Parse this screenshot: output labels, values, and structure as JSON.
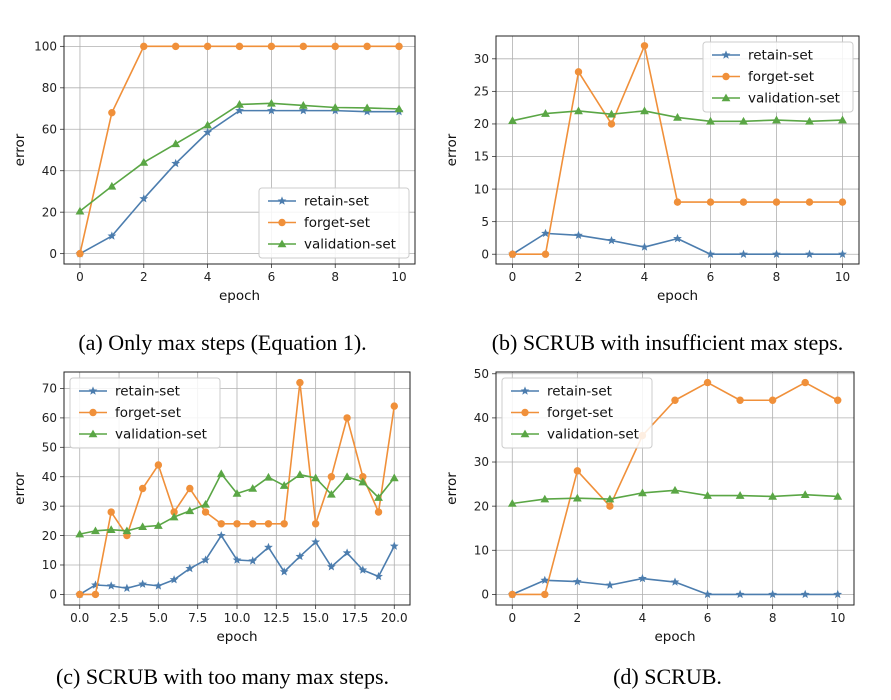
{
  "colors": {
    "retain": "#4c7dae",
    "forget": "#f0903a",
    "validation": "#5aa645"
  },
  "chart_data": [
    {
      "type": "line",
      "caption": "(a) Only max steps (Equation 1).",
      "xlabel": "epoch",
      "ylabel": "error",
      "xlim": [
        -0.5,
        10.5
      ],
      "ylim": [
        -5,
        105
      ],
      "xticks": [
        0,
        2,
        4,
        6,
        8,
        10
      ],
      "xtick_labels": [
        "0",
        "2",
        "4",
        "6",
        "8",
        "10"
      ],
      "yticks": [
        0,
        20,
        40,
        60,
        80,
        100
      ],
      "ytick_labels": [
        "0",
        "20",
        "40",
        "60",
        "80",
        "100"
      ],
      "grid": true,
      "legend_position": "bottom-right",
      "x": [
        0,
        1,
        2,
        3,
        4,
        5,
        6,
        7,
        8,
        9,
        10
      ],
      "series": [
        {
          "name": "retain-set",
          "marker": "star",
          "values": [
            0,
            8.5,
            26.5,
            43.5,
            58.5,
            69,
            69,
            69,
            69,
            68.5,
            68.5
          ]
        },
        {
          "name": "forget-set",
          "marker": "circle",
          "values": [
            0,
            68,
            100,
            100,
            100,
            100,
            100,
            100,
            100,
            100,
            100
          ]
        },
        {
          "name": "validation-set",
          "marker": "triangle",
          "values": [
            20.5,
            32.5,
            44,
            53,
            62,
            72,
            72.5,
            71.5,
            70.5,
            70.3,
            69.8
          ]
        }
      ]
    },
    {
      "type": "line",
      "caption": "(b) SCRUB with insufficient max steps.",
      "xlabel": "epoch",
      "ylabel": "error",
      "xlim": [
        -0.5,
        10.5
      ],
      "ylim": [
        -1.5,
        33.5
      ],
      "xticks": [
        0,
        2,
        4,
        6,
        8,
        10
      ],
      "xtick_labels": [
        "0",
        "2",
        "4",
        "6",
        "8",
        "10"
      ],
      "yticks": [
        0,
        5,
        10,
        15,
        20,
        25,
        30
      ],
      "ytick_labels": [
        "0",
        "5",
        "10",
        "15",
        "20",
        "25",
        "30"
      ],
      "grid": true,
      "legend_position": "top-right",
      "x": [
        0,
        1,
        2,
        3,
        4,
        5,
        6,
        7,
        8,
        9,
        10
      ],
      "series": [
        {
          "name": "retain-set",
          "marker": "star",
          "values": [
            0,
            3.2,
            2.9,
            2.1,
            1.1,
            2.4,
            0,
            0,
            0,
            0,
            0
          ]
        },
        {
          "name": "forget-set",
          "marker": "circle",
          "values": [
            0,
            0,
            28,
            20,
            32,
            8,
            8,
            8,
            8,
            8,
            8
          ]
        },
        {
          "name": "validation-set",
          "marker": "triangle",
          "values": [
            20.5,
            21.6,
            22,
            21.5,
            22,
            21,
            20.4,
            20.4,
            20.6,
            20.4,
            20.6
          ]
        }
      ]
    },
    {
      "type": "line",
      "caption": "(c) SCRUB with too many max steps.",
      "xlabel": "epoch",
      "ylabel": "error",
      "xlim": [
        -1,
        21
      ],
      "ylim": [
        -3.6,
        75.6
      ],
      "xticks": [
        0,
        2.5,
        5,
        7.5,
        10,
        12.5,
        15,
        17.5,
        20
      ],
      "xtick_labels": [
        "0.0",
        "2.5",
        "5.0",
        "7.5",
        "10.0",
        "12.5",
        "15.0",
        "17.5",
        "20.0"
      ],
      "yticks": [
        0,
        10,
        20,
        30,
        40,
        50,
        60,
        70
      ],
      "ytick_labels": [
        "0",
        "10",
        "20",
        "30",
        "40",
        "50",
        "60",
        "70"
      ],
      "grid": true,
      "legend_position": "top-left",
      "x": [
        0,
        1,
        2,
        3,
        4,
        5,
        6,
        7,
        8,
        9,
        10,
        11,
        12,
        13,
        14,
        15,
        16,
        17,
        18,
        19,
        20
      ],
      "series": [
        {
          "name": "retain-set",
          "marker": "star",
          "values": [
            0,
            3.2,
            2.9,
            2.1,
            3.5,
            2.9,
            5,
            8.8,
            11.7,
            20,
            11.7,
            11.4,
            16,
            7.7,
            12.9,
            17.8,
            9.4,
            14.1,
            8.3,
            6.1,
            16.4
          ]
        },
        {
          "name": "forget-set",
          "marker": "circle",
          "values": [
            0,
            0,
            28,
            20,
            36,
            44,
            28,
            36,
            28,
            24,
            24,
            24,
            24,
            24,
            72,
            24,
            40,
            60,
            40,
            28,
            64
          ]
        },
        {
          "name": "validation-set",
          "marker": "triangle",
          "values": [
            20.5,
            21.6,
            22,
            21.6,
            23,
            23.4,
            26.3,
            28.4,
            30.6,
            41,
            34.3,
            36,
            39.8,
            37,
            40.7,
            39.6,
            34,
            40,
            38.2,
            32.9,
            39.6
          ]
        }
      ]
    },
    {
      "type": "line",
      "caption": "(d) SCRUB.",
      "xlabel": "epoch",
      "ylabel": "error",
      "xlim": [
        -0.5,
        10.5
      ],
      "ylim": [
        -2.4,
        50.4
      ],
      "xticks": [
        0,
        2,
        4,
        6,
        8,
        10
      ],
      "xtick_labels": [
        "0",
        "2",
        "4",
        "6",
        "8",
        "10"
      ],
      "yticks": [
        0,
        10,
        20,
        30,
        40,
        50
      ],
      "ytick_labels": [
        "0",
        "10",
        "20",
        "30",
        "40",
        "50"
      ],
      "grid": true,
      "legend_position": "top-left",
      "x": [
        0,
        1,
        2,
        3,
        4,
        5,
        6,
        7,
        8,
        9,
        10
      ],
      "series": [
        {
          "name": "retain-set",
          "marker": "star",
          "values": [
            0,
            3.2,
            2.9,
            2.1,
            3.6,
            2.8,
            0,
            0,
            0,
            0,
            0
          ]
        },
        {
          "name": "forget-set",
          "marker": "circle",
          "values": [
            0,
            0,
            28,
            20,
            36,
            44,
            48,
            44,
            44,
            48,
            44
          ]
        },
        {
          "name": "validation-set",
          "marker": "triangle",
          "values": [
            20.6,
            21.6,
            21.8,
            21.6,
            23,
            23.6,
            22.4,
            22.4,
            22.2,
            22.6,
            22.2
          ]
        }
      ]
    }
  ]
}
